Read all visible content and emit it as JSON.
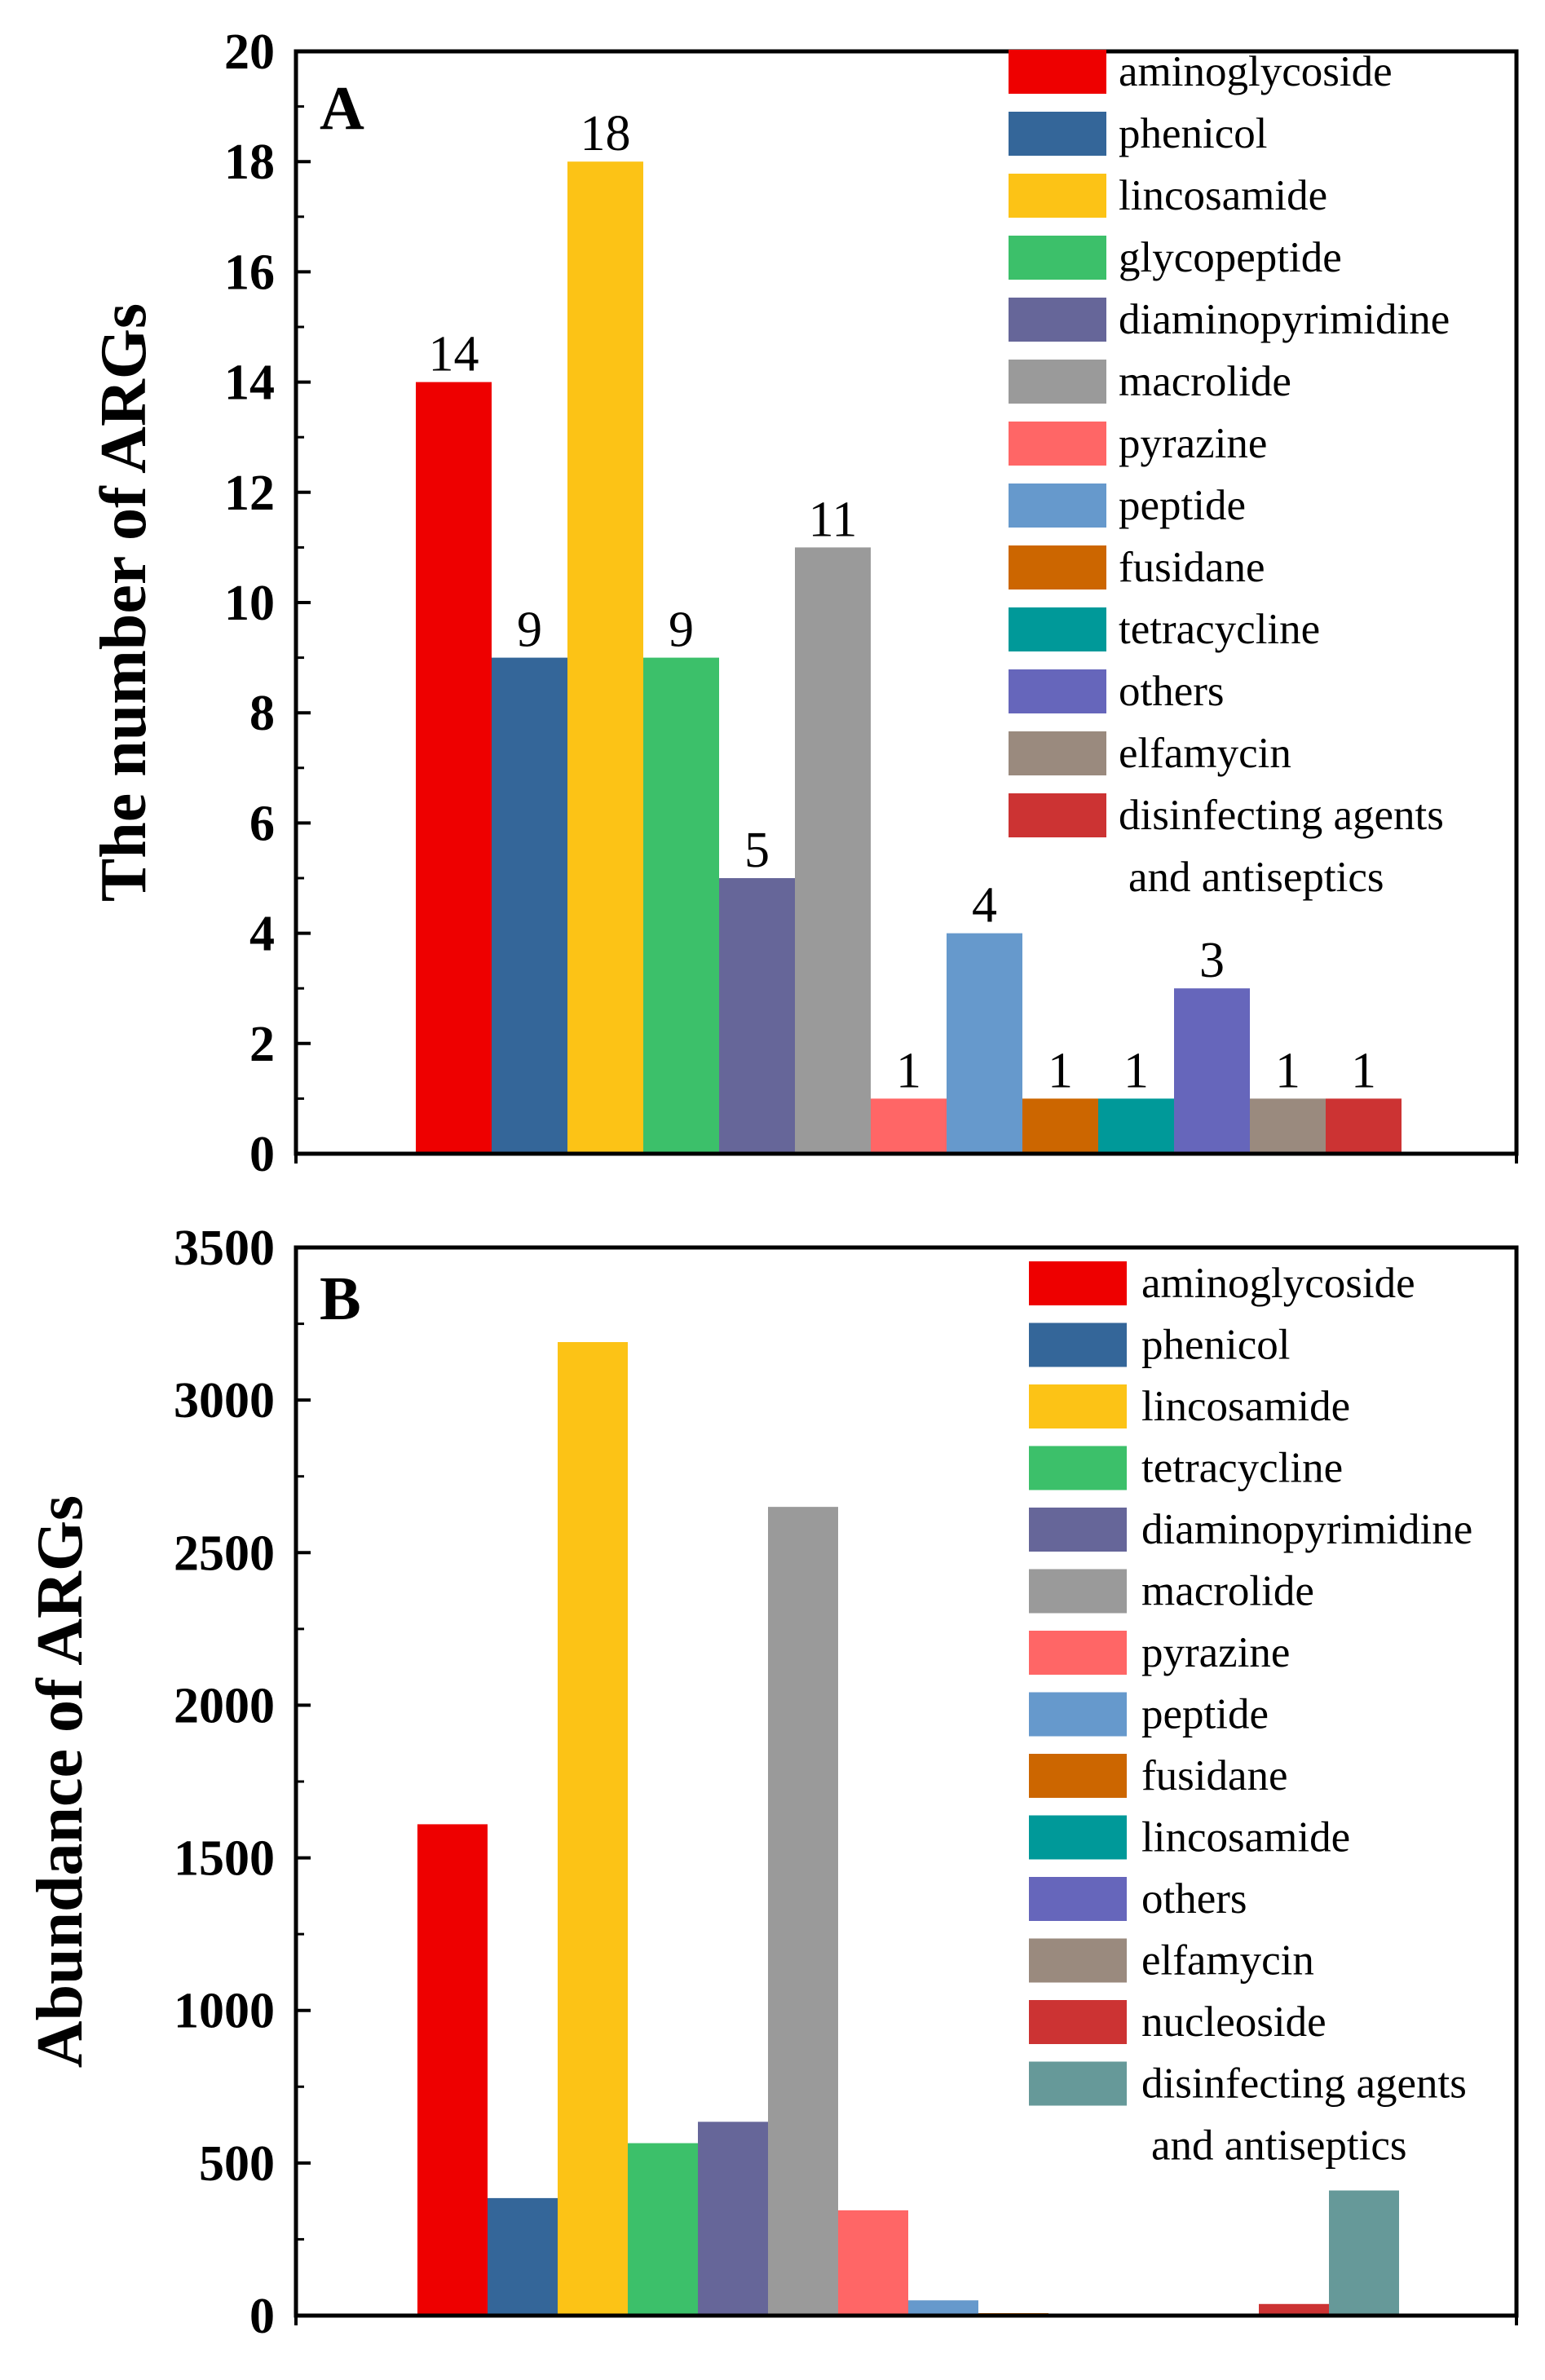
{
  "chart_data": [
    {
      "type": "bar",
      "panel_label": "A",
      "ylabel": "The number of ARGs",
      "ylim": [
        0,
        20
      ],
      "yticks": [
        0,
        2,
        4,
        6,
        8,
        10,
        12,
        14,
        16,
        18,
        20
      ],
      "ytick_labels": [
        "0",
        "2",
        "4",
        "6",
        "8",
        "10",
        "12",
        "14",
        "16",
        "18",
        "20"
      ],
      "legend_position": "top-right",
      "data_labels": true,
      "bars": [
        {
          "category": "aminoglycoside",
          "value": 14,
          "label": "14",
          "color": "#EE0000"
        },
        {
          "category": "phenicol",
          "value": 9,
          "label": "9",
          "color": "#346699"
        },
        {
          "category": "lincosamide",
          "value": 18,
          "label": "18",
          "color": "#FCC316"
        },
        {
          "category": "glycopeptide",
          "value": 9,
          "label": "9",
          "color": "#3CC06A"
        },
        {
          "category": "diaminopyrimidine",
          "value": 5,
          "label": "5",
          "color": "#666699"
        },
        {
          "category": "macrolide",
          "value": 11,
          "label": "11",
          "color": "#9A9A9A"
        },
        {
          "category": "pyrazine",
          "value": 1,
          "label": "1",
          "color": "#FF6666"
        },
        {
          "category": "peptide",
          "value": 4,
          "label": "4",
          "color": "#6699CC"
        },
        {
          "category": "fusidane",
          "value": 1,
          "label": "1",
          "color": "#CC6600"
        },
        {
          "category": "tetracycline",
          "value": 1,
          "label": "1",
          "color": "#009999"
        },
        {
          "category": "others",
          "value": 3,
          "label": "3",
          "color": "#6666BB"
        },
        {
          "category": "elfamycin",
          "value": 1,
          "label": "1",
          "color": "#9A8A7E"
        },
        {
          "category": "disinfecting agents and antiseptics",
          "value": 1,
          "label": "1",
          "color": "#CC3333"
        }
      ],
      "legend": [
        {
          "lines": [
            "aminoglycoside"
          ],
          "color": "#EE0000"
        },
        {
          "lines": [
            "phenicol"
          ],
          "color": "#346699"
        },
        {
          "lines": [
            "lincosamide"
          ],
          "color": "#FCC316"
        },
        {
          "lines": [
            "glycopeptide"
          ],
          "color": "#3CC06A"
        },
        {
          "lines": [
            "diaminopyrimidine"
          ],
          "color": "#666699"
        },
        {
          "lines": [
            "macrolide"
          ],
          "color": "#9A9A9A"
        },
        {
          "lines": [
            "pyrazine"
          ],
          "color": "#FF6666"
        },
        {
          "lines": [
            "peptide"
          ],
          "color": "#6699CC"
        },
        {
          "lines": [
            "fusidane"
          ],
          "color": "#CC6600"
        },
        {
          "lines": [
            "tetracycline"
          ],
          "color": "#009999"
        },
        {
          "lines": [
            "others"
          ],
          "color": "#6666BB"
        },
        {
          "lines": [
            "elfamycin"
          ],
          "color": "#9A8A7E"
        },
        {
          "lines": [
            "disinfecting agents",
            "and antiseptics"
          ],
          "color": "#CC3333"
        }
      ]
    },
    {
      "type": "bar",
      "panel_label": "B",
      "ylabel": "Abundance of ARGs",
      "ylim": [
        0,
        3500
      ],
      "yticks": [
        0,
        500,
        1000,
        1500,
        2000,
        2500,
        3000,
        3500
      ],
      "ytick_labels": [
        "0",
        "500",
        "1000",
        "1500",
        "2000",
        "2500",
        "3000",
        "3500"
      ],
      "legend_position": "top-right",
      "data_labels": false,
      "bars": [
        {
          "category": "aminoglycoside",
          "value": 1610,
          "color": "#EE0000"
        },
        {
          "category": "phenicol",
          "value": 385,
          "color": "#346699"
        },
        {
          "category": "lincosamide",
          "value": 3190,
          "color": "#FCC316"
        },
        {
          "category": "tetracycline",
          "value": 565,
          "color": "#3CC06A"
        },
        {
          "category": "diaminopyrimidine",
          "value": 635,
          "color": "#666699"
        },
        {
          "category": "macrolide",
          "value": 2650,
          "color": "#9A9A9A"
        },
        {
          "category": "pyrazine",
          "value": 345,
          "color": "#FF6666"
        },
        {
          "category": "peptide",
          "value": 50,
          "color": "#6699CC"
        },
        {
          "category": "fusidane",
          "value": 8,
          "color": "#CC6600"
        },
        {
          "category": "lincosamide",
          "value": 3,
          "color": "#009999"
        },
        {
          "category": "others",
          "value": 2,
          "color": "#6666BB"
        },
        {
          "category": "elfamycin",
          "value": 2,
          "color": "#9A8A7E"
        },
        {
          "category": "nucleoside",
          "value": 38,
          "color": "#CC3333"
        },
        {
          "category": "disinfecting agents and antiseptics",
          "value": 410,
          "color": "#669999"
        }
      ],
      "legend": [
        {
          "lines": [
            "aminoglycoside"
          ],
          "color": "#EE0000"
        },
        {
          "lines": [
            "phenicol"
          ],
          "color": "#346699"
        },
        {
          "lines": [
            "lincosamide"
          ],
          "color": "#FCC316"
        },
        {
          "lines": [
            "tetracycline"
          ],
          "color": "#3CC06A"
        },
        {
          "lines": [
            "diaminopyrimidine"
          ],
          "color": "#666699"
        },
        {
          "lines": [
            "macrolide"
          ],
          "color": "#9A9A9A"
        },
        {
          "lines": [
            "pyrazine"
          ],
          "color": "#FF6666"
        },
        {
          "lines": [
            "peptide"
          ],
          "color": "#6699CC"
        },
        {
          "lines": [
            "fusidane"
          ],
          "color": "#CC6600"
        },
        {
          "lines": [
            "lincosamide"
          ],
          "color": "#009999"
        },
        {
          "lines": [
            "others"
          ],
          "color": "#6666BB"
        },
        {
          "lines": [
            "elfamycin"
          ],
          "color": "#9A8A7E"
        },
        {
          "lines": [
            "nucleoside"
          ],
          "color": "#CC3333"
        },
        {
          "lines": [
            "disinfecting agents",
            "and antiseptics"
          ],
          "color": "#669999"
        }
      ]
    }
  ]
}
